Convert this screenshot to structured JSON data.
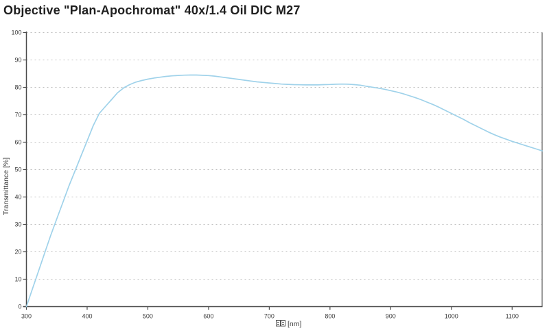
{
  "page": {
    "title": "Objective \"Plan-Apochromat\" 40x/1.4 Oil DIC M27"
  },
  "chart_data": {
    "type": "line",
    "title": "Objective \"Plan-Apochromat\" 40x/1.4 Oil DIC M27",
    "ylabel": "Transmittance [%]",
    "xlabel_unit": "[nm]",
    "xlabel_missing_glyph_count": 2,
    "xlim": [
      300,
      1150
    ],
    "ylim": [
      0,
      100
    ],
    "x_ticks": [
      300,
      400,
      500,
      600,
      700,
      800,
      900,
      1000,
      1100
    ],
    "y_ticks": [
      0,
      10,
      20,
      30,
      40,
      50,
      60,
      70,
      80,
      90,
      100
    ],
    "grid": "horizontal dotted gridlines at every 10%, no vertical gridlines",
    "legend": "none",
    "series": [
      {
        "name": "transmittance-curve",
        "color": "#9fd2ea",
        "points": [
          [
            300,
            0
          ],
          [
            310,
            6.5
          ],
          [
            320,
            13
          ],
          [
            330,
            19.5
          ],
          [
            340,
            26
          ],
          [
            350,
            32
          ],
          [
            360,
            38
          ],
          [
            370,
            44
          ],
          [
            380,
            49.5
          ],
          [
            390,
            55
          ],
          [
            400,
            60.5
          ],
          [
            410,
            66
          ],
          [
            420,
            70.5
          ],
          [
            430,
            73
          ],
          [
            440,
            75.5
          ],
          [
            450,
            78
          ],
          [
            460,
            79.8
          ],
          [
            470,
            81
          ],
          [
            480,
            81.9
          ],
          [
            490,
            82.5
          ],
          [
            500,
            83
          ],
          [
            510,
            83.4
          ],
          [
            520,
            83.7
          ],
          [
            530,
            84
          ],
          [
            540,
            84.2
          ],
          [
            550,
            84.35
          ],
          [
            560,
            84.45
          ],
          [
            570,
            84.5
          ],
          [
            580,
            84.5
          ],
          [
            590,
            84.4
          ],
          [
            600,
            84.3
          ],
          [
            610,
            84.1
          ],
          [
            620,
            83.8
          ],
          [
            630,
            83.5
          ],
          [
            640,
            83.2
          ],
          [
            650,
            82.9
          ],
          [
            660,
            82.6
          ],
          [
            670,
            82.3
          ],
          [
            680,
            82
          ],
          [
            690,
            81.8
          ],
          [
            700,
            81.6
          ],
          [
            710,
            81.4
          ],
          [
            720,
            81.2
          ],
          [
            730,
            81.1
          ],
          [
            740,
            81
          ],
          [
            750,
            80.95
          ],
          [
            760,
            80.9
          ],
          [
            770,
            80.9
          ],
          [
            780,
            80.9
          ],
          [
            790,
            81
          ],
          [
            800,
            81.05
          ],
          [
            810,
            81.15
          ],
          [
            820,
            81.2
          ],
          [
            830,
            81.15
          ],
          [
            840,
            81
          ],
          [
            850,
            80.8
          ],
          [
            860,
            80.4
          ],
          [
            870,
            80.05
          ],
          [
            880,
            79.7
          ],
          [
            890,
            79.3
          ],
          [
            900,
            78.8
          ],
          [
            910,
            78.3
          ],
          [
            920,
            77.7
          ],
          [
            930,
            77
          ],
          [
            940,
            76.3
          ],
          [
            950,
            75.5
          ],
          [
            960,
            74.6
          ],
          [
            970,
            73.7
          ],
          [
            980,
            72.7
          ],
          [
            990,
            71.6
          ],
          [
            1000,
            70.5
          ],
          [
            1010,
            69.4
          ],
          [
            1020,
            68.3
          ],
          [
            1030,
            67.1
          ],
          [
            1040,
            66
          ],
          [
            1050,
            64.9
          ],
          [
            1060,
            63.8
          ],
          [
            1070,
            62.8
          ],
          [
            1080,
            61.9
          ],
          [
            1090,
            61.1
          ],
          [
            1100,
            60.3
          ],
          [
            1110,
            59.6
          ],
          [
            1120,
            58.9
          ],
          [
            1130,
            58.2
          ],
          [
            1140,
            57.5
          ],
          [
            1150,
            56.8
          ]
        ]
      }
    ]
  },
  "colors": {
    "background": "#ffffff",
    "curve": "#9fd2ea",
    "axis": "#4a4a4a",
    "right_border": "#7a7a7a",
    "gridline": "#bfbfbf",
    "text": "#3a3a3a",
    "title_text": "#1f1f1f"
  }
}
